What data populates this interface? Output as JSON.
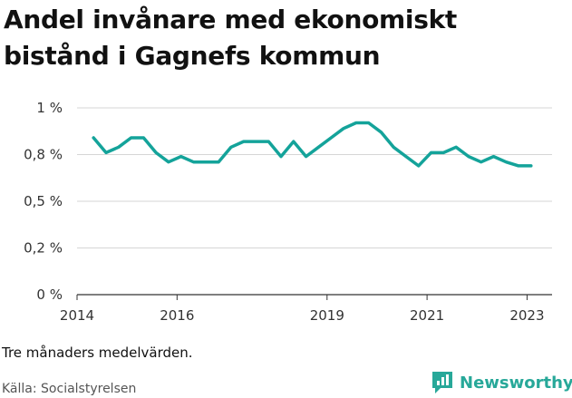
{
  "title": "Andel invånare med ekonomiskt bistånd i Gagnefs kommun",
  "note": "Tre månaders medelvärden.",
  "source": "Källa: Socialstyrelsen",
  "brand": {
    "name": "Newsworthy",
    "icon": "newsworthy-logo-icon"
  },
  "colors": {
    "line": "#14a39a",
    "grid": "#d6d6d6",
    "brand": "#27a899"
  },
  "chart_data": {
    "type": "line",
    "title": "Andel invånare med ekonomiskt bistånd i Gagnefs kommun",
    "xlabel": "",
    "ylabel": "",
    "ylim": [
      0,
      1
    ],
    "yticks": [
      0,
      0.25,
      0.5,
      0.75,
      1
    ],
    "ytick_labels": [
      "0 %",
      "0,2 %",
      "0,5 %",
      "0,8 %",
      "1 %"
    ],
    "xlim": [
      2014,
      2023.5
    ],
    "xticks": [
      2014,
      2016,
      2019,
      2021,
      2023
    ],
    "xtick_labels": [
      "2014",
      "2016",
      "2019",
      "2021",
      "2023"
    ],
    "grid": true,
    "legend": "none",
    "x": [
      2014.33,
      2014.58,
      2014.83,
      2015.08,
      2015.33,
      2015.58,
      2015.83,
      2016.08,
      2016.33,
      2016.58,
      2016.83,
      2017.08,
      2017.33,
      2017.58,
      2017.83,
      2018.08,
      2018.33,
      2018.58,
      2018.83,
      2019.08,
      2019.33,
      2019.58,
      2019.83,
      2020.08,
      2020.33,
      2020.58,
      2020.83,
      2021.08,
      2021.33,
      2021.58,
      2021.83,
      2022.08,
      2022.33,
      2022.58,
      2022.83,
      2023.08
    ],
    "series": [
      {
        "values": [
          0.84,
          0.76,
          0.79,
          0.84,
          0.84,
          0.76,
          0.71,
          0.74,
          0.71,
          0.71,
          0.71,
          0.79,
          0.82,
          0.82,
          0.82,
          0.74,
          0.82,
          0.74,
          0.79,
          0.84,
          0.89,
          0.92,
          0.92,
          0.87,
          0.79,
          0.74,
          0.69,
          0.76,
          0.76,
          0.79,
          0.74,
          0.71,
          0.74,
          0.71,
          0.69,
          0.69
        ]
      }
    ]
  }
}
